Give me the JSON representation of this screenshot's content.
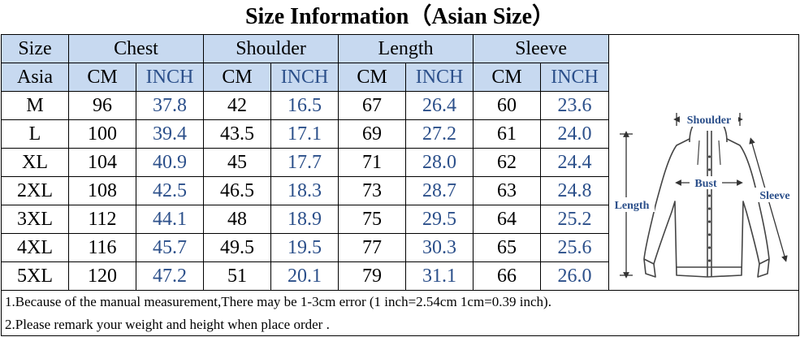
{
  "title": "Size Information（Asian Size）",
  "table": {
    "header_row1": {
      "size": "Size",
      "chest": "Chest",
      "shoulder": "Shoulder",
      "length": "Length",
      "sleeve": "Sleeve"
    },
    "header_row2": {
      "asia": "Asia",
      "cm": "CM",
      "inch": "INCH"
    },
    "rows": [
      {
        "size": "M",
        "chest_cm": "96",
        "chest_in": "37.8",
        "shoulder_cm": "42",
        "shoulder_in": "16.5",
        "length_cm": "67",
        "length_in": "26.4",
        "sleeve_cm": "60",
        "sleeve_in": "23.6"
      },
      {
        "size": "L",
        "chest_cm": "100",
        "chest_in": "39.4",
        "shoulder_cm": "43.5",
        "shoulder_in": "17.1",
        "length_cm": "69",
        "length_in": "27.2",
        "sleeve_cm": "61",
        "sleeve_in": "24.0"
      },
      {
        "size": "XL",
        "chest_cm": "104",
        "chest_in": "40.9",
        "shoulder_cm": "45",
        "shoulder_in": "17.7",
        "length_cm": "71",
        "length_in": "28.0",
        "sleeve_cm": "62",
        "sleeve_in": "24.4"
      },
      {
        "size": "2XL",
        "chest_cm": "108",
        "chest_in": "42.5",
        "shoulder_cm": "46.5",
        "shoulder_in": "18.3",
        "length_cm": "73",
        "length_in": "28.7",
        "sleeve_cm": "63",
        "sleeve_in": "24.8"
      },
      {
        "size": "3XL",
        "chest_cm": "112",
        "chest_in": "44.1",
        "shoulder_cm": "48",
        "shoulder_in": "18.9",
        "length_cm": "75",
        "length_in": "29.5",
        "sleeve_cm": "64",
        "sleeve_in": "25.2"
      },
      {
        "size": "4XL",
        "chest_cm": "116",
        "chest_in": "45.7",
        "shoulder_cm": "49.5",
        "shoulder_in": "19.5",
        "length_cm": "77",
        "length_in": "30.3",
        "sleeve_cm": "65",
        "sleeve_in": "25.6"
      },
      {
        "size": "5XL",
        "chest_cm": "120",
        "chest_in": "47.2",
        "shoulder_cm": "51",
        "shoulder_in": "20.1",
        "length_cm": "79",
        "length_in": "31.1",
        "sleeve_cm": "66",
        "sleeve_in": "26.0"
      }
    ]
  },
  "figure": {
    "shoulder_label": "Shoulder",
    "bust_label": "Bust",
    "length_label": "Length",
    "sleeve_label": "Sleeve",
    "label_color": "#2b4f8a"
  },
  "notes": [
    "1.Because of the manual measurement,There may be 1-3cm error (1 inch=2.54cm 1cm=0.39 inch).",
    "2.Please remark your weight and height when place order ."
  ],
  "colors": {
    "header_bg": "#c7d9f0",
    "inch_text": "#2b4f8a"
  }
}
